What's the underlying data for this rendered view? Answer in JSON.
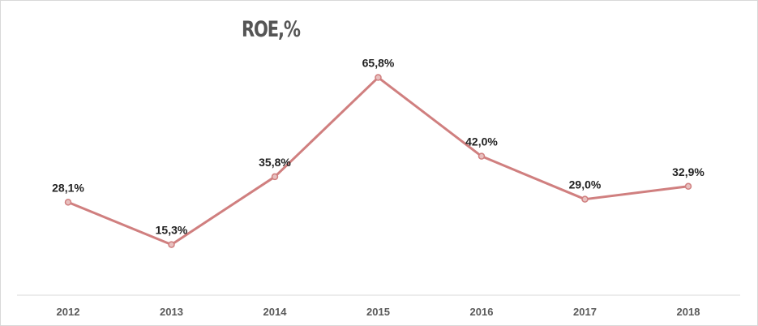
{
  "chart_data": {
    "type": "line",
    "title": "ROE,%",
    "xlabel": "",
    "ylabel": "",
    "categories": [
      "2012",
      "2013",
      "2014",
      "2015",
      "2016",
      "2017",
      "2018"
    ],
    "series": [
      {
        "values": [
          28.1,
          15.3,
          35.8,
          65.8,
          42.0,
          29.0,
          32.9
        ],
        "labels": [
          "28,1%",
          "15,3%",
          "35,8%",
          "65,8%",
          "42,0%",
          "29,0%",
          "32,9%"
        ],
        "color": "#d07f7f"
      }
    ],
    "ylim": [
      0,
      71
    ],
    "grid": false,
    "legend": "none",
    "marker_fill": "#e8c0bf"
  }
}
